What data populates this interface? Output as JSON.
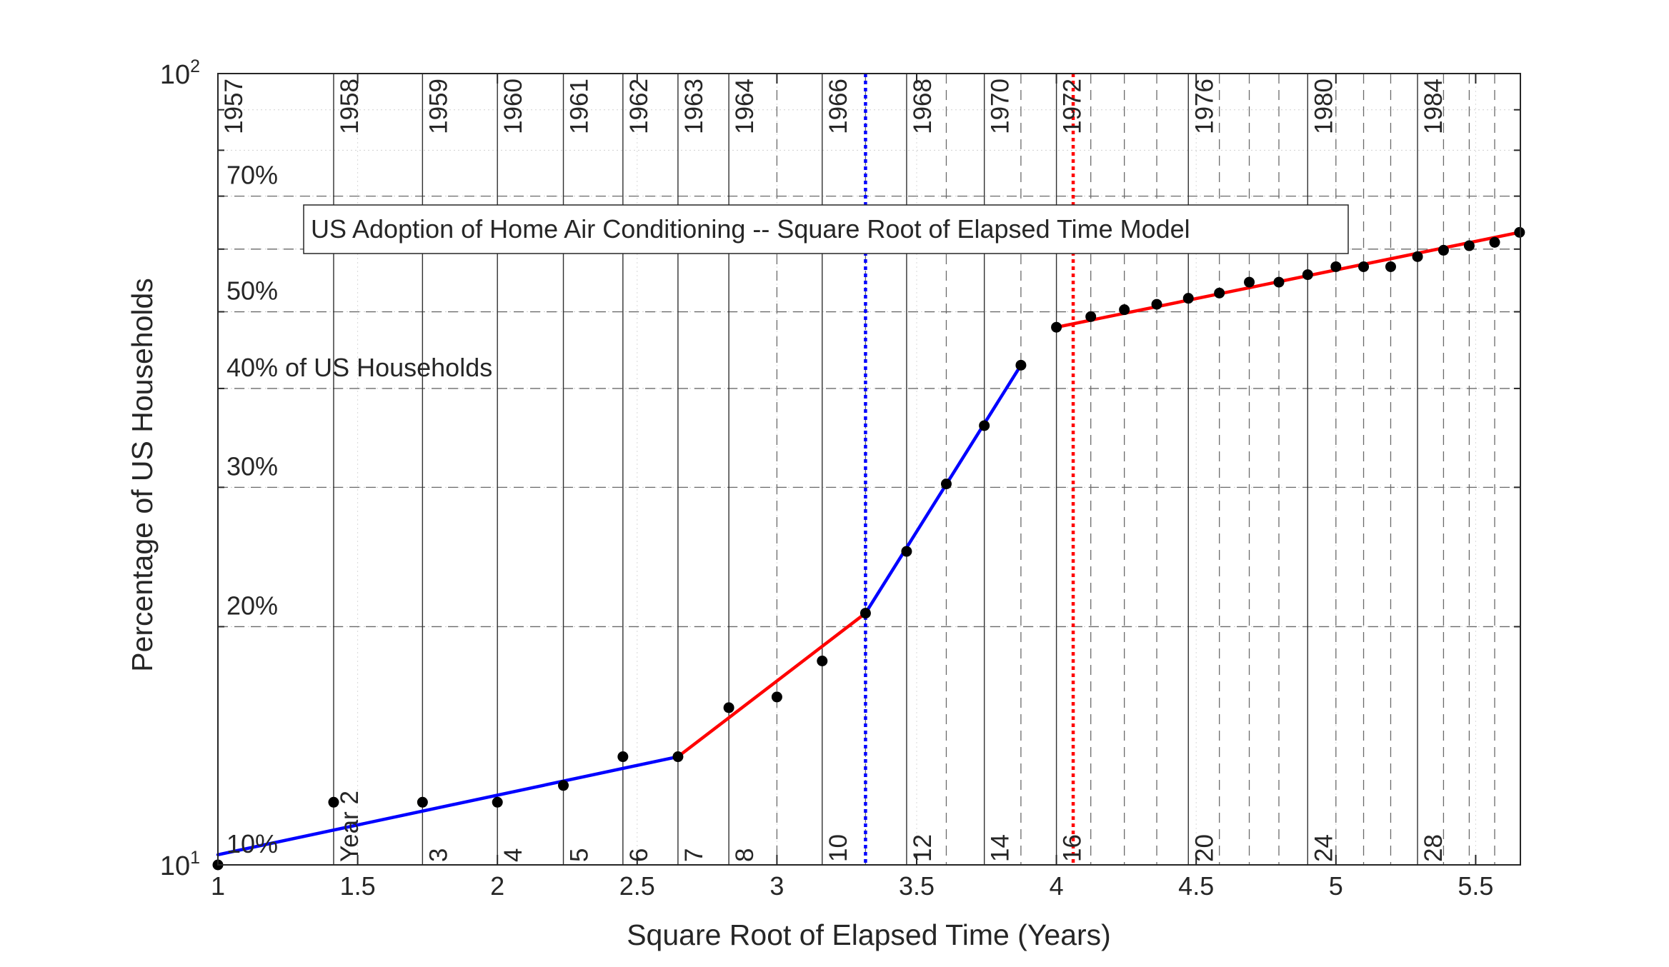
{
  "chart_data": {
    "type": "line",
    "title": "US Adoption of Home Air Conditioning -- Square Root of Elapsed Time Model",
    "xlabel": "Square Root of Elapsed Time (Years)",
    "ylabel": "Percentage of US Households",
    "xlim": [
      1,
      5.66
    ],
    "ylim": [
      10,
      100
    ],
    "yscale": "log",
    "grid": true,
    "x_ticks": [
      {
        "value": 1,
        "label": "1"
      },
      {
        "value": 1.5,
        "label": "1.5"
      },
      {
        "value": 2,
        "label": "2"
      },
      {
        "value": 2.5,
        "label": "2.5"
      },
      {
        "value": 3,
        "label": "3"
      },
      {
        "value": 3.5,
        "label": "3.5"
      },
      {
        "value": 4,
        "label": "4"
      },
      {
        "value": 4.5,
        "label": "4.5"
      },
      {
        "value": 5,
        "label": "5"
      },
      {
        "value": 5.5,
        "label": "5.5"
      }
    ],
    "y_ticks": [
      {
        "value": 10,
        "base": "10",
        "exp": "1"
      },
      {
        "value": 100,
        "base": "10",
        "exp": "2"
      }
    ],
    "percent_labels": [
      {
        "value": 10,
        "label": "10%"
      },
      {
        "value": 20,
        "label": "20%"
      },
      {
        "value": 30,
        "label": "30%"
      },
      {
        "value": 40,
        "label": "40% of US Households"
      },
      {
        "value": 50,
        "label": "50%"
      },
      {
        "value": 70,
        "label": "70%"
      }
    ],
    "year_labels": [
      {
        "x": 1.0,
        "label": "1957"
      },
      {
        "x": 1.414,
        "label": "1958"
      },
      {
        "x": 1.732,
        "label": "1959"
      },
      {
        "x": 2.0,
        "label": "1960"
      },
      {
        "x": 2.236,
        "label": "1961"
      },
      {
        "x": 2.449,
        "label": "1962"
      },
      {
        "x": 2.646,
        "label": "1963"
      },
      {
        "x": 2.828,
        "label": "1964"
      },
      {
        "x": 3.162,
        "label": "1966"
      },
      {
        "x": 3.464,
        "label": "1968"
      },
      {
        "x": 3.742,
        "label": "1970"
      },
      {
        "x": 4.0,
        "label": "1972"
      },
      {
        "x": 4.472,
        "label": "1976"
      },
      {
        "x": 4.899,
        "label": "1980"
      },
      {
        "x": 5.292,
        "label": "1984"
      }
    ],
    "elapsed_labels": [
      {
        "x": 1.414,
        "label": "Year 2"
      },
      {
        "x": 1.732,
        "label": "3"
      },
      {
        "x": 2.0,
        "label": "4"
      },
      {
        "x": 2.236,
        "label": "5"
      },
      {
        "x": 2.449,
        "label": "6"
      },
      {
        "x": 2.646,
        "label": "7"
      },
      {
        "x": 2.828,
        "label": "8"
      },
      {
        "x": 3.162,
        "label": "10"
      },
      {
        "x": 3.464,
        "label": "12"
      },
      {
        "x": 3.742,
        "label": "14"
      },
      {
        "x": 4.0,
        "label": "16"
      },
      {
        "x": 4.472,
        "label": "20"
      },
      {
        "x": 4.899,
        "label": "24"
      },
      {
        "x": 5.292,
        "label": "28"
      }
    ],
    "solid_vlines": [
      1.414,
      1.732,
      2.0,
      2.236,
      2.449,
      2.646,
      2.828,
      3.162,
      3.464,
      3.742,
      4.0,
      4.472,
      4.899,
      5.292
    ],
    "dashed_vlines": [
      3.0,
      3.317,
      3.606,
      3.873,
      4.123,
      4.243,
      4.359,
      4.583,
      4.69,
      4.796,
      5.0,
      5.099,
      5.196,
      5.385,
      5.477,
      5.568
    ],
    "dashed_hlines": [
      20,
      30,
      40,
      50,
      60,
      70
    ],
    "points": [
      {
        "x": 1.0,
        "y": 10.0
      },
      {
        "x": 1.414,
        "y": 12.0
      },
      {
        "x": 1.732,
        "y": 12.0
      },
      {
        "x": 2.0,
        "y": 12.0
      },
      {
        "x": 2.236,
        "y": 12.6
      },
      {
        "x": 2.449,
        "y": 13.7
      },
      {
        "x": 2.646,
        "y": 13.7
      },
      {
        "x": 2.828,
        "y": 15.8
      },
      {
        "x": 3.0,
        "y": 16.3
      },
      {
        "x": 3.162,
        "y": 18.1
      },
      {
        "x": 3.317,
        "y": 20.8
      },
      {
        "x": 3.464,
        "y": 24.9
      },
      {
        "x": 3.606,
        "y": 30.3
      },
      {
        "x": 3.742,
        "y": 35.9
      },
      {
        "x": 3.873,
        "y": 42.8
      },
      {
        "x": 4.0,
        "y": 47.8
      },
      {
        "x": 4.123,
        "y": 49.3
      },
      {
        "x": 4.243,
        "y": 50.3
      },
      {
        "x": 4.359,
        "y": 51.1
      },
      {
        "x": 4.472,
        "y": 52.0
      },
      {
        "x": 4.583,
        "y": 52.8
      },
      {
        "x": 4.69,
        "y": 54.5
      },
      {
        "x": 4.796,
        "y": 54.5
      },
      {
        "x": 4.899,
        "y": 55.7
      },
      {
        "x": 5.0,
        "y": 57.0
      },
      {
        "x": 5.099,
        "y": 57.0
      },
      {
        "x": 5.196,
        "y": 57.0
      },
      {
        "x": 5.292,
        "y": 58.7
      },
      {
        "x": 5.385,
        "y": 59.8
      },
      {
        "x": 5.477,
        "y": 60.6
      },
      {
        "x": 5.568,
        "y": 61.2
      },
      {
        "x": 5.657,
        "y": 63.0
      }
    ],
    "fit_segments": [
      {
        "color": "#0000ff",
        "x": [
          1.0,
          2.646
        ],
        "y": [
          10.3,
          13.7
        ]
      },
      {
        "color": "#ff0000",
        "x": [
          2.646,
          3.317
        ],
        "y": [
          13.7,
          20.8
        ]
      },
      {
        "color": "#0000ff",
        "x": [
          3.317,
          3.873
        ],
        "y": [
          20.8,
          42.8
        ]
      },
      {
        "color": "#ff0000",
        "x": [
          4.0,
          5.657
        ],
        "y": [
          47.8,
          63.0
        ]
      }
    ],
    "markers": [
      {
        "x": 3.317,
        "color": "#0000ff",
        "style": "dotted"
      },
      {
        "x": 4.06,
        "color": "#ff0000",
        "style": "dotted"
      }
    ]
  }
}
